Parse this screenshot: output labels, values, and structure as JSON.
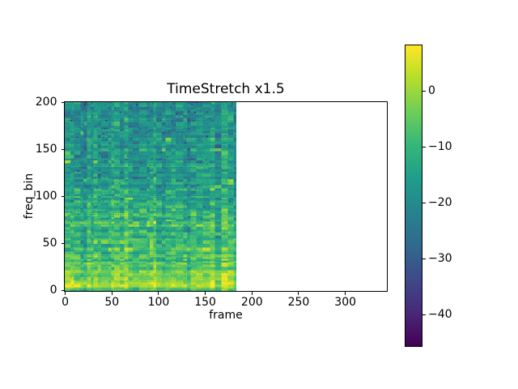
{
  "figure": {
    "background": "#ffffff",
    "spine_color": "#000000"
  },
  "chart_data": {
    "type": "heatmap",
    "title": "TimeStretch x1.5",
    "xlabel": "frame",
    "ylabel": "freq_bin",
    "xlim": [
      -0.5,
      344.5
    ],
    "ylim": [
      -0.5,
      200.5
    ],
    "x_ticks": [
      0,
      50,
      100,
      150,
      200,
      250,
      300
    ],
    "y_ticks": [
      0,
      50,
      100,
      150,
      200
    ],
    "grid": false,
    "n_frames": 184,
    "n_freq_bins": 201,
    "values_unit": "dB",
    "colormap": "viridis",
    "colormap_stops": [
      [
        0.0,
        "#440154"
      ],
      [
        0.11,
        "#482878"
      ],
      [
        0.22,
        "#3e4989"
      ],
      [
        0.33,
        "#31688e"
      ],
      [
        0.44,
        "#26828e"
      ],
      [
        0.56,
        "#1f9e89"
      ],
      [
        0.67,
        "#35b779"
      ],
      [
        0.78,
        "#6ece58"
      ],
      [
        0.89,
        "#b5de2b"
      ],
      [
        1.0,
        "#fde725"
      ]
    ],
    "colorbar": {
      "vmin": -45.5,
      "vmax": 8.1,
      "ticks": [
        0,
        -10,
        -20,
        -30,
        -40
      ],
      "tick_labels": [
        "0",
        "−10",
        "−20",
        "−30",
        "−40"
      ],
      "position": "right"
    },
    "freq_profile_db": [
      -10,
      1,
      2,
      -2,
      -5,
      -1,
      -8,
      -3,
      -9,
      -4,
      -10,
      -5,
      -11,
      -6,
      -12,
      -7,
      -13,
      -8,
      -6,
      -13,
      -8,
      -10,
      -14,
      -11,
      -16,
      -12,
      -16,
      -13,
      -17,
      -14,
      -17,
      -15,
      -18,
      -15,
      -18,
      -16,
      -18,
      -16,
      -19,
      -16,
      -18,
      -17,
      -18,
      -17,
      -19,
      -17,
      -18,
      -17,
      -18,
      -17,
      -18
    ],
    "freq_profile_step_bins": 4,
    "noise": {
      "seed": 42,
      "row_jitter_sigma": 1.3,
      "segment_sigma": 1.8,
      "cell_sigma": 3.8,
      "pixel_sigma": 1.6,
      "dark_speck_prob": 0.012,
      "bright_blob_prob": 0.012
    }
  }
}
